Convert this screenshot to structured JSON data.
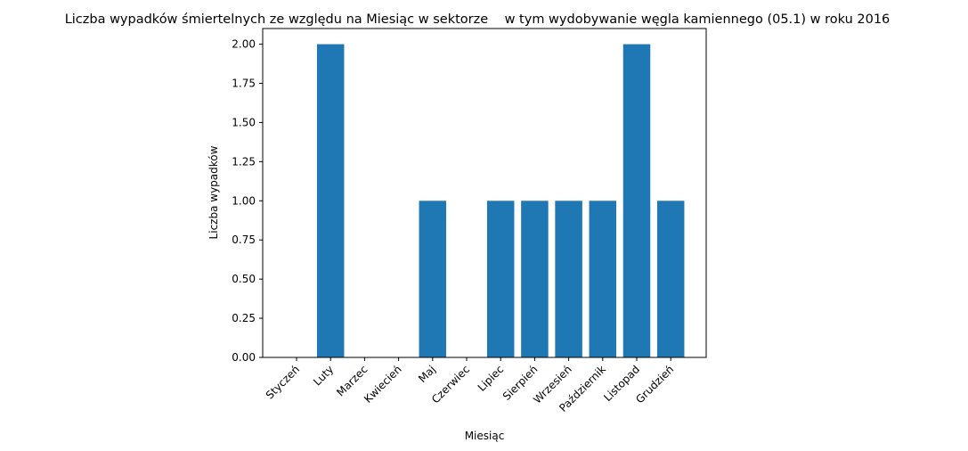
{
  "chart_data": {
    "type": "bar",
    "title": "Liczba wypadków śmiertelnych ze względu na Miesiąc w sektorze    w tym wydobywanie węgla kamiennego (05.1) w roku 2016",
    "xlabel": "Miesiąc",
    "ylabel": "Liczba wypadków",
    "categories": [
      "Styczeń",
      "Luty",
      "Marzec",
      "Kwiecień",
      "Maj",
      "Czerwiec",
      "Lipiec",
      "Sierpień",
      "Wrzesień",
      "Październik",
      "Listopad",
      "Grudzień"
    ],
    "values": [
      0,
      2,
      0,
      0,
      1,
      0,
      1,
      1,
      1,
      1,
      2,
      1
    ],
    "ylim": [
      0,
      2.1
    ],
    "yticks": [
      "0.00",
      "0.25",
      "0.50",
      "0.75",
      "1.00",
      "1.25",
      "1.50",
      "1.75",
      "2.00"
    ],
    "bar_color": "#1f77b4",
    "grid": false,
    "legend": false
  }
}
